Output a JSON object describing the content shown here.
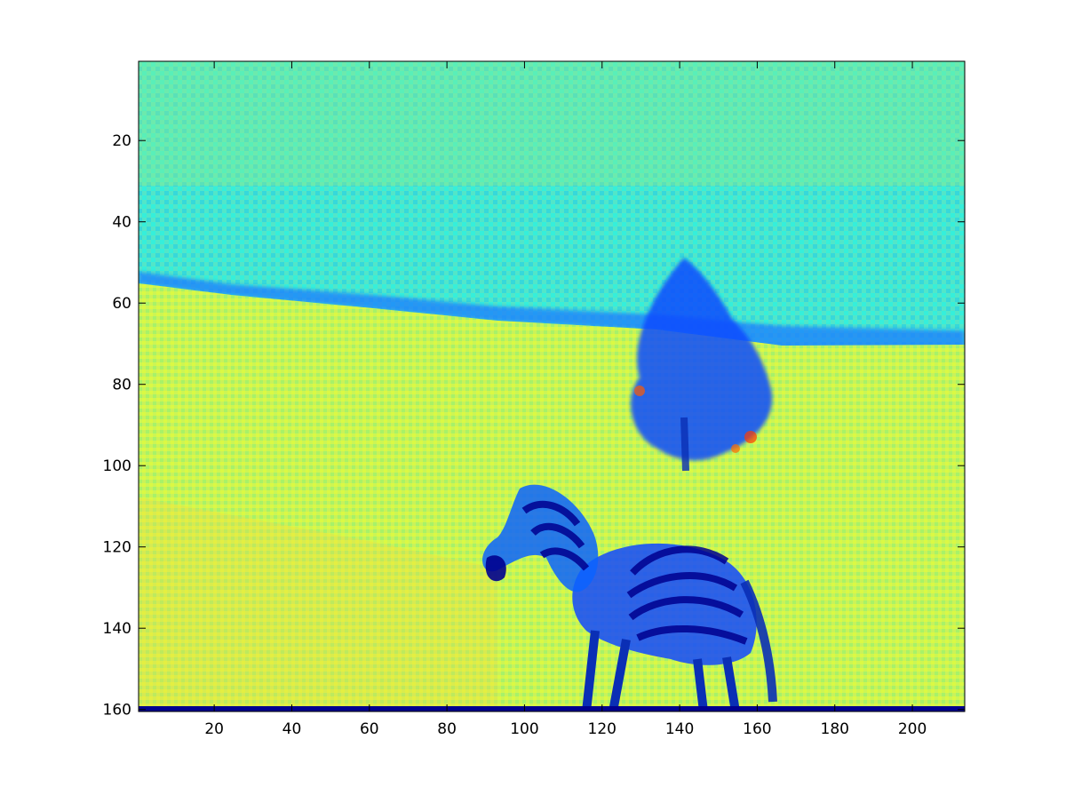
{
  "figure": {
    "background": "#ffffff",
    "axes_color": "#000000",
    "image_size": {
      "rows": 160,
      "cols": 213
    },
    "colormap": "jet",
    "content": "zebra-photo-intensity-map",
    "axis_direction": "reverse-y"
  },
  "x_axis": {
    "range": [
      0.5,
      213.5
    ],
    "ticks": [
      20,
      40,
      60,
      80,
      100,
      120,
      140,
      160,
      180,
      200
    ],
    "tick_labels": [
      "20",
      "40",
      "60",
      "80",
      "100",
      "120",
      "140",
      "160",
      "180",
      "200"
    ]
  },
  "y_axis": {
    "range": [
      0.5,
      160.5
    ],
    "ticks": [
      20,
      40,
      60,
      80,
      100,
      120,
      140,
      160
    ],
    "tick_labels": [
      "20",
      "40",
      "60",
      "80",
      "100",
      "120",
      "140",
      "160"
    ]
  },
  "palette": {
    "dark_blue": "#00008f",
    "blue": "#0050ff",
    "cyan": "#00e0f0",
    "yellow_green": "#c8f050",
    "orange_red": "#e85a10"
  }
}
